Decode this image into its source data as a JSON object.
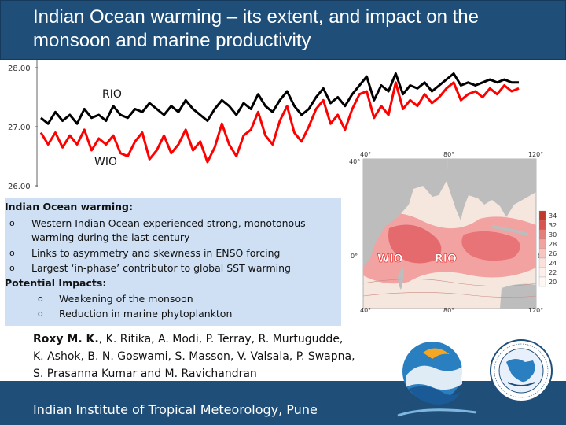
{
  "header": {
    "title_line1": "Indian Ocean warming – its extent, and impact on the",
    "title_line2": "monsoon and marine productivity"
  },
  "chart_data": {
    "type": "line",
    "yticks": [
      "28.00",
      "27.00",
      "26.00"
    ],
    "ylim": [
      26.0,
      28.0
    ],
    "series": [
      {
        "name": "RIO",
        "color": "#000000",
        "values": [
          27.15,
          27.05,
          27.25,
          27.1,
          27.2,
          27.05,
          27.3,
          27.15,
          27.2,
          27.1,
          27.35,
          27.2,
          27.15,
          27.3,
          27.25,
          27.4,
          27.3,
          27.2,
          27.35,
          27.25,
          27.45,
          27.3,
          27.2,
          27.1,
          27.3,
          27.45,
          27.35,
          27.2,
          27.4,
          27.3,
          27.55,
          27.35,
          27.25,
          27.45,
          27.6,
          27.35,
          27.2,
          27.3,
          27.5,
          27.65,
          27.4,
          27.5,
          27.35,
          27.55,
          27.7,
          27.85,
          27.45,
          27.7,
          27.6,
          27.9,
          27.55,
          27.7,
          27.65,
          27.75,
          27.6,
          27.7,
          27.8,
          27.9,
          27.7,
          27.75,
          27.7,
          27.75,
          27.8,
          27.75,
          27.8,
          27.75,
          27.75
        ]
      },
      {
        "name": "WIO",
        "color": "#ff0000",
        "values": [
          26.9,
          26.7,
          26.9,
          26.65,
          26.85,
          26.7,
          26.95,
          26.6,
          26.8,
          26.7,
          26.85,
          26.55,
          26.5,
          26.75,
          26.9,
          26.45,
          26.6,
          26.85,
          26.55,
          26.7,
          26.95,
          26.6,
          26.75,
          26.4,
          26.65,
          27.05,
          26.7,
          26.5,
          26.85,
          26.95,
          27.25,
          26.85,
          26.7,
          27.1,
          27.35,
          26.9,
          26.75,
          27.0,
          27.3,
          27.45,
          27.05,
          27.2,
          26.95,
          27.3,
          27.55,
          27.6,
          27.15,
          27.35,
          27.2,
          27.75,
          27.3,
          27.45,
          27.35,
          27.55,
          27.4,
          27.5,
          27.65,
          27.75,
          27.45,
          27.55,
          27.6,
          27.5,
          27.65,
          27.55,
          27.7,
          27.6,
          27.65
        ]
      }
    ]
  },
  "panel": {
    "heading": "Indian Ocean warming:",
    "b1_line1": "Western Indian Ocean experienced strong, monotonous",
    "b1_line2": "warming during the last century",
    "b2": "Links to asymmetry and skewness in ENSO forcing",
    "b3": "Largest ‘in-phase’ contributor to global SST warming",
    "impacts_heading": "Potential Impacts:",
    "i1": "Weakening of the monsoon",
    "i2": "Reduction in marine phytoplankton",
    "bullet_glyph": "o"
  },
  "map": {
    "top_labels": [
      "40°",
      "80°",
      "120°"
    ],
    "bottom_labels": [
      "40°",
      "80°",
      "120°"
    ],
    "lat_labels_left": [
      "40°",
      "0°"
    ],
    "lat_labels_right": [
      "0°"
    ],
    "region_wio": "WIO",
    "region_rio": "RIO",
    "colorbar": [
      "34",
      "32",
      "30",
      "28",
      "26",
      "24",
      "22",
      "20"
    ]
  },
  "authors": {
    "lead": "Roxy M. K.",
    "line1_rest": ", K. Ritika, A. Modi, P. Terray, R. Murtugudde,",
    "line2": "K. Ashok, B. N. Goswami, S. Masson, V. Valsala, P. Swapna,",
    "line3": "S. Prasanna Kumar and M. Ravichandran"
  },
  "footer": {
    "institute": "Indian Institute of Tropical Meteorology, Pune"
  },
  "colors": {
    "header_bg": "#1f4e79",
    "panel_bg": "#cfe0f4",
    "rio": "#000000",
    "wio": "#ff0000"
  }
}
